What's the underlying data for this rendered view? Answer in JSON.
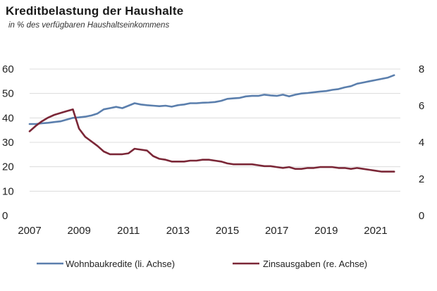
{
  "title": "Kreditbelastung der Haushalte",
  "subtitle": "in % des verfügbaren Haushaltseinkommens",
  "chart_data": {
    "type": "line",
    "title": "Kreditbelastung der Haushalte",
    "subtitle": "in % des verfügbaren Haushaltseinkommens",
    "xlim": [
      2007,
      2022
    ],
    "x_ticks": [
      2007,
      2009,
      2011,
      2013,
      2015,
      2017,
      2019,
      2021
    ],
    "y_left": {
      "lim": [
        0,
        60
      ],
      "ticks": [
        0,
        10,
        20,
        30,
        40,
        50,
        60
      ]
    },
    "y_right": {
      "lim": [
        0,
        8
      ],
      "ticks": [
        0,
        2,
        4,
        6,
        8
      ]
    },
    "grid": "horizontal",
    "legend_position": "bottom",
    "series": [
      {
        "name": "Wohnbaukredite (li. Achse)",
        "axis": "left",
        "color": "#5b7fad",
        "x": [
          2007,
          2007.25,
          2007.5,
          2007.75,
          2008,
          2008.25,
          2008.5,
          2008.75,
          2009,
          2009.25,
          2009.5,
          2009.75,
          2010,
          2010.25,
          2010.5,
          2010.75,
          2011,
          2011.25,
          2011.5,
          2011.75,
          2012,
          2012.25,
          2012.5,
          2012.75,
          2013,
          2013.25,
          2013.5,
          2013.75,
          2014,
          2014.25,
          2014.5,
          2014.75,
          2015,
          2015.25,
          2015.5,
          2015.75,
          2016,
          2016.25,
          2016.5,
          2016.75,
          2017,
          2017.25,
          2017.5,
          2017.75,
          2018,
          2018.25,
          2018.5,
          2018.75,
          2019,
          2019.25,
          2019.5,
          2019.75,
          2020,
          2020.25,
          2020.5,
          2020.75,
          2021,
          2021.25,
          2021.5,
          2021.75
        ],
        "values": [
          37.5,
          37.5,
          37.8,
          38,
          38.3,
          38.6,
          39.3,
          40,
          40.2,
          40.5,
          41,
          41.8,
          43.5,
          44,
          44.5,
          44,
          45,
          46,
          45.5,
          45.2,
          45,
          44.8,
          45,
          44.6,
          45.2,
          45.5,
          46,
          46,
          46.2,
          46.3,
          46.5,
          47,
          47.8,
          48,
          48.2,
          48.8,
          49,
          49,
          49.5,
          49.2,
          49,
          49.5,
          48.8,
          49.5,
          50,
          50.2,
          50.5,
          50.8,
          51,
          51.5,
          51.8,
          52.5,
          53,
          54,
          54.5,
          55,
          55.5,
          56,
          56.5,
          57.5
        ]
      },
      {
        "name": "Zinsausgaben (re. Achse)",
        "axis": "right",
        "color": "#7b2737",
        "x": [
          2007,
          2007.25,
          2007.5,
          2007.75,
          2008,
          2008.25,
          2008.5,
          2008.75,
          2009,
          2009.25,
          2009.5,
          2009.75,
          2010,
          2010.25,
          2010.5,
          2010.75,
          2011,
          2011.25,
          2011.5,
          2011.75,
          2012,
          2012.25,
          2012.5,
          2012.75,
          2013,
          2013.25,
          2013.5,
          2013.75,
          2014,
          2014.25,
          2014.5,
          2014.75,
          2015,
          2015.25,
          2015.5,
          2015.75,
          2016,
          2016.25,
          2016.5,
          2016.75,
          2017,
          2017.25,
          2017.5,
          2017.75,
          2018,
          2018.25,
          2018.5,
          2018.75,
          2019,
          2019.25,
          2019.5,
          2019.75,
          2020,
          2020.25,
          2020.5,
          2020.75,
          2021,
          2021.25,
          2021.5,
          2021.75
        ],
        "values": [
          4.6,
          4.9,
          5.15,
          5.35,
          5.5,
          5.6,
          5.7,
          5.8,
          4.75,
          4.3,
          4.05,
          3.8,
          3.5,
          3.35,
          3.35,
          3.35,
          3.4,
          3.65,
          3.6,
          3.55,
          3.25,
          3.1,
          3.05,
          2.95,
          2.95,
          2.95,
          3.0,
          3.0,
          3.05,
          3.05,
          3.0,
          2.95,
          2.85,
          2.8,
          2.8,
          2.8,
          2.8,
          2.75,
          2.7,
          2.7,
          2.65,
          2.6,
          2.65,
          2.55,
          2.55,
          2.6,
          2.6,
          2.65,
          2.65,
          2.65,
          2.6,
          2.6,
          2.55,
          2.6,
          2.55,
          2.5,
          2.45,
          2.4,
          2.4,
          2.4
        ]
      }
    ]
  }
}
